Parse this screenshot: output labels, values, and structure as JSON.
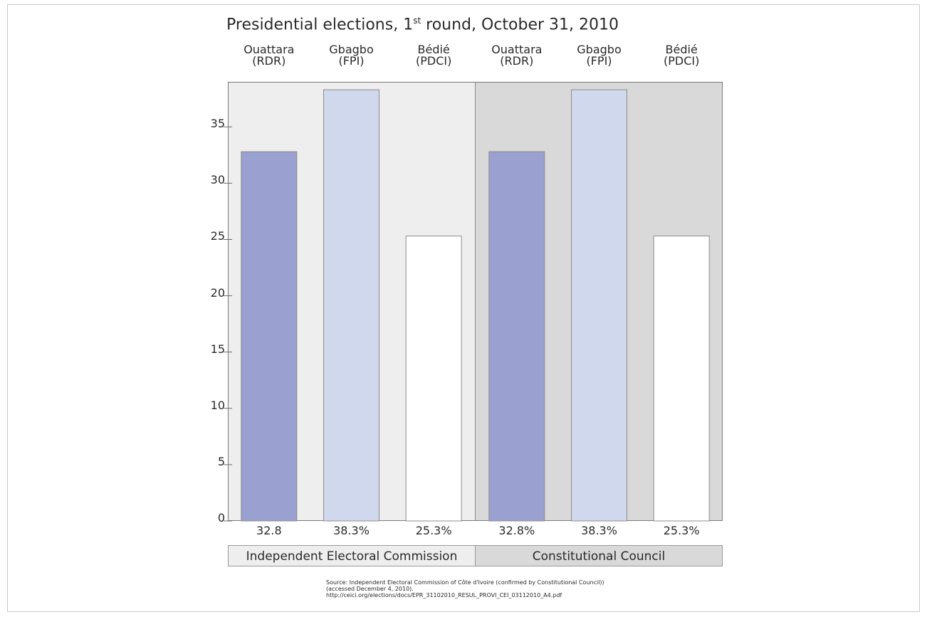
{
  "title": {
    "prefix": "Presidential elections, 1",
    "sup": "st",
    "suffix": " round, October 31, 2010"
  },
  "colors": {
    "ouattara": "#9aa0d0",
    "gbagbo": "#cfd8ec",
    "bedie": "#ffffff",
    "panel_left": "#eeeeee",
    "panel_right": "#d9d9d9"
  },
  "chart_data": {
    "type": "bar",
    "title": "Presidential elections, 1st round, October 31, 2010",
    "ylim": [
      0,
      39
    ],
    "yticks": [
      "0",
      "5",
      "10",
      "15",
      "20",
      "25",
      "30",
      "35"
    ],
    "grid": false,
    "groups": [
      {
        "name": "Independent Electoral Commission",
        "bars": [
          {
            "candidate": "Ouattara",
            "party": "(RDR)",
            "value": 32.8,
            "label": "32.8"
          },
          {
            "candidate": "Gbagbo",
            "party": "(FPI)",
            "value": 38.3,
            "label": "38.3%"
          },
          {
            "candidate": "Bédié",
            "party": "(PDCI)",
            "value": 25.3,
            "label": "25.3%"
          }
        ]
      },
      {
        "name": "Constitutional Council",
        "bars": [
          {
            "candidate": "Ouattara",
            "party": "(RDR)",
            "value": 32.8,
            "label": "32.8%"
          },
          {
            "candidate": "Gbagbo",
            "party": "(FPI)",
            "value": 38.3,
            "label": "38.3%"
          },
          {
            "candidate": "Bédié",
            "party": "(PDCI)",
            "value": 25.3,
            "label": "25.3%"
          }
        ]
      }
    ]
  },
  "source": {
    "line1": "Source: Independent Electoral Commission of Côte d'Ivoire (confirmed by Constitutional Council))",
    "line2": "(accessed December 4, 2010).",
    "line3": "http://ceici.org/elections/docs/EPR_31102010_RESUL_PROVI_CEI_03112010_A4.pdf"
  }
}
